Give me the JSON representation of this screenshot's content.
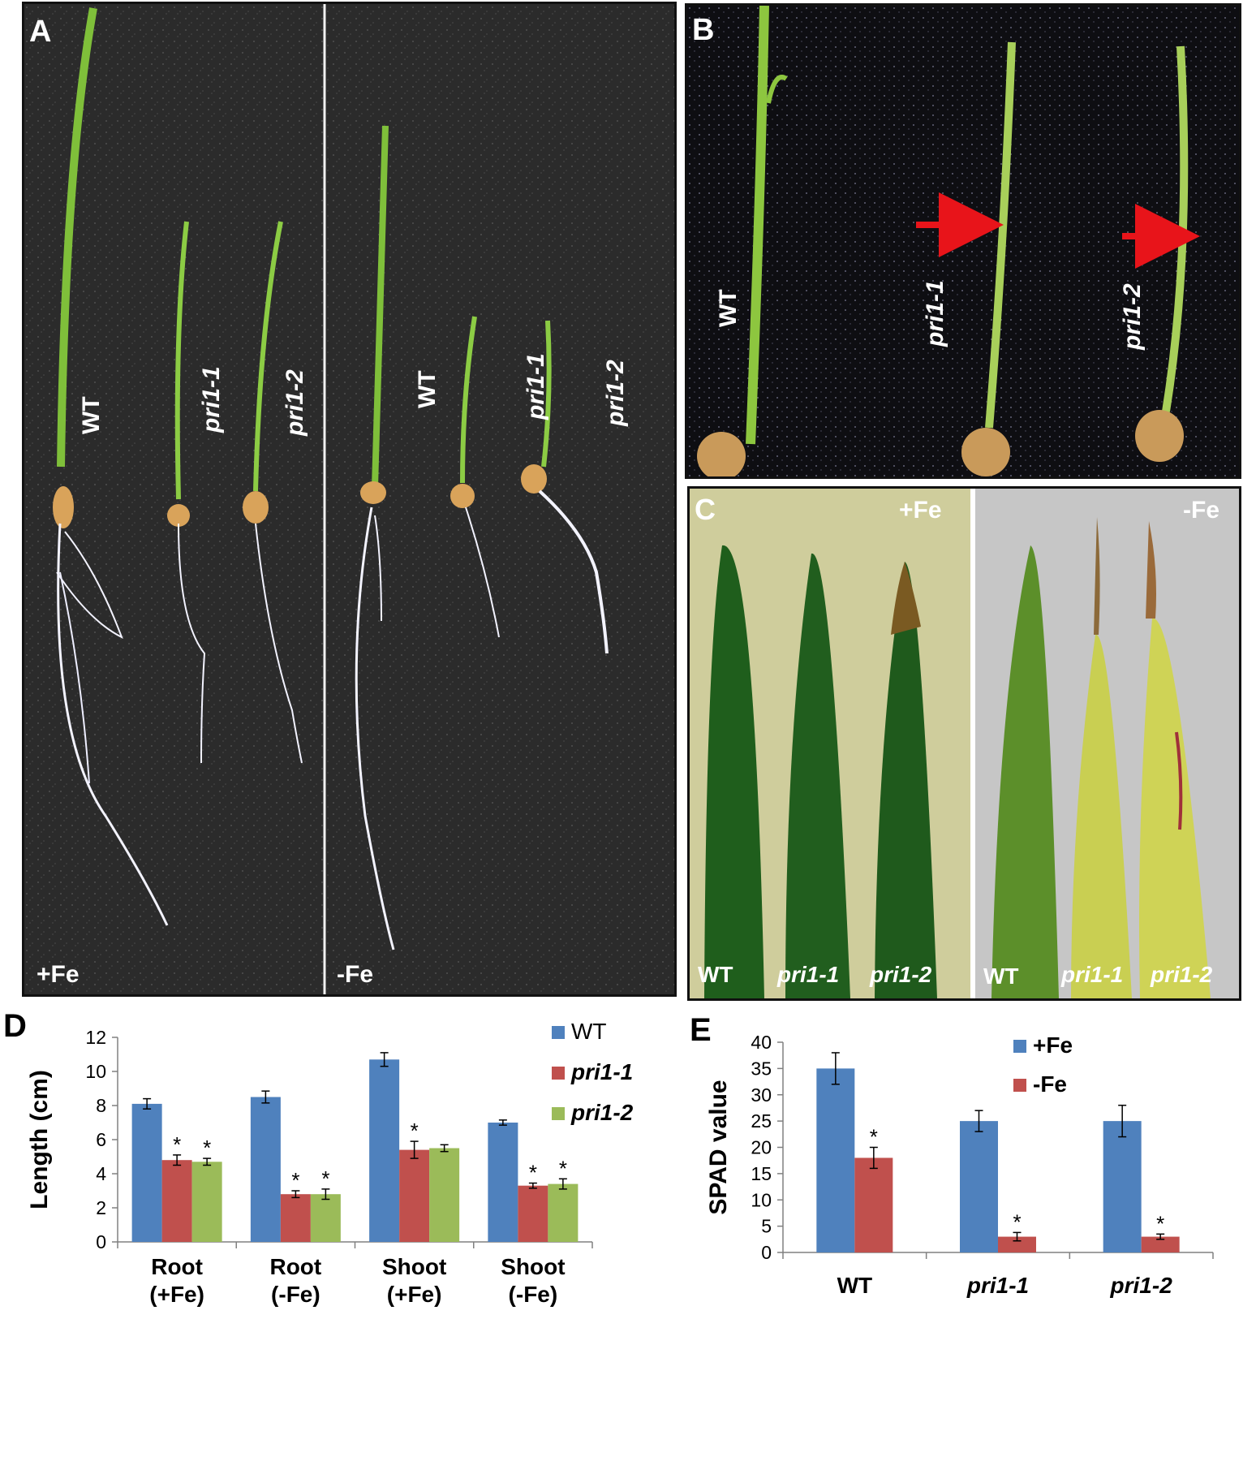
{
  "panels": {
    "A": {
      "label": "A",
      "left_condition": "+Fe",
      "right_condition": "-Fe",
      "left_plants": [
        "WT",
        "pri1-1",
        "pri1-2"
      ],
      "right_plants": [
        "WT",
        "pri1-1",
        "pri1-2"
      ],
      "background": "#2b2b2b"
    },
    "B": {
      "label": "B",
      "plants": [
        "WT",
        "pri1-1",
        "pri1-2"
      ],
      "arrow_color": "#e8141a",
      "background": "#0e0e12"
    },
    "C": {
      "label": "C",
      "left_condition": "+Fe",
      "right_condition": "-Fe",
      "left_leaves": [
        "WT",
        "pri1-1",
        "pri1-2"
      ],
      "right_leaves": [
        "WT",
        "pri1-1",
        "pri1-2"
      ],
      "left_background": "#cfcd9c",
      "right_background": "#c6c6c6"
    }
  },
  "chart_data": [
    {
      "panel_label": "D",
      "type": "bar",
      "categories": [
        [
          "Root",
          "(+Fe)"
        ],
        [
          "Root",
          "(-Fe)"
        ],
        [
          "Shoot",
          "(+Fe)"
        ],
        [
          "Shoot",
          "(-Fe)"
        ]
      ],
      "series": [
        {
          "name": "WT",
          "color": "#4f81bd",
          "values": [
            8.1,
            8.5,
            10.7,
            7.0
          ],
          "errors": [
            0.3,
            0.35,
            0.4,
            0.15
          ],
          "stars": [
            false,
            false,
            false,
            false
          ]
        },
        {
          "name": "pri1-1",
          "color": "#c0504d",
          "values": [
            4.8,
            2.8,
            5.4,
            3.3
          ],
          "errors": [
            0.3,
            0.2,
            0.5,
            0.15
          ],
          "stars": [
            true,
            true,
            true,
            true
          ]
        },
        {
          "name": "pri1-2",
          "color": "#9bbb59",
          "values": [
            4.7,
            2.8,
            5.5,
            3.4
          ],
          "errors": [
            0.2,
            0.3,
            0.2,
            0.3
          ],
          "stars": [
            true,
            true,
            false,
            true
          ]
        }
      ],
      "ylabel": "Length (cm)",
      "ylim": [
        0,
        12
      ],
      "yticks": [
        0,
        2,
        4,
        6,
        8,
        10,
        12
      ],
      "grid": false,
      "legend": "top-right",
      "star_symbol": "*"
    },
    {
      "panel_label": "E",
      "type": "bar",
      "categories": [
        "WT",
        "pri1-1",
        "pri1-2"
      ],
      "series": [
        {
          "name": "+Fe",
          "color": "#4f81bd",
          "values": [
            35,
            25,
            25
          ],
          "errors": [
            3,
            2,
            3
          ],
          "stars": [
            false,
            false,
            false
          ]
        },
        {
          "name": "-Fe",
          "color": "#c0504d",
          "values": [
            18,
            3,
            3
          ],
          "errors": [
            2,
            0.8,
            0.5
          ],
          "stars": [
            true,
            true,
            true
          ]
        }
      ],
      "ylabel": "SPAD value",
      "ylim": [
        0,
        40
      ],
      "yticks": [
        0,
        5,
        10,
        15,
        20,
        25,
        30,
        35,
        40
      ],
      "grid": false,
      "legend": "top-right",
      "star_symbol": "*"
    }
  ]
}
